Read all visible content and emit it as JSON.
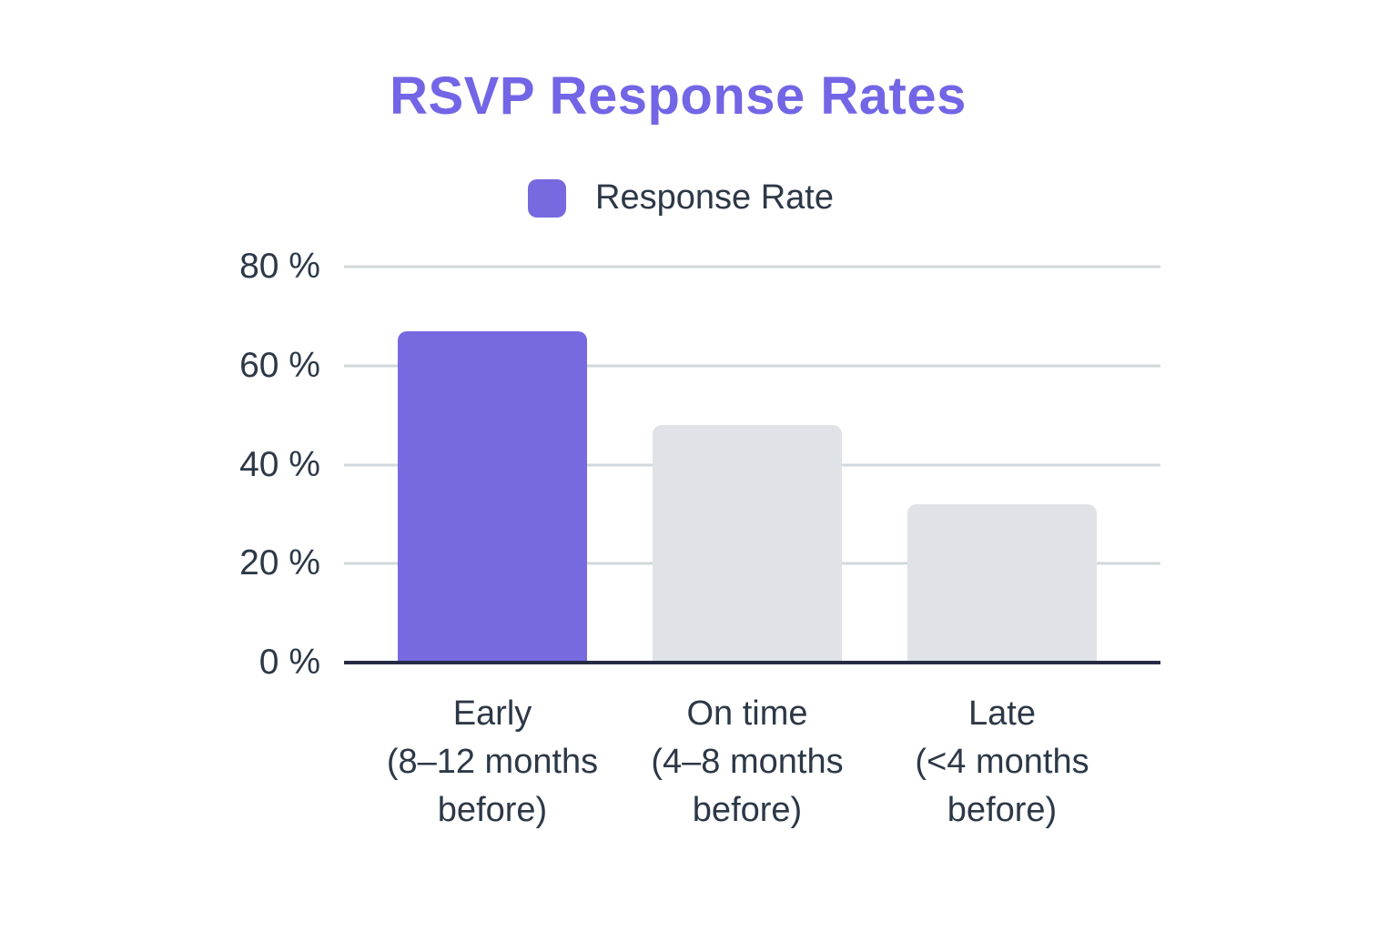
{
  "title": "RSVP Response Rates",
  "legend": {
    "label": "Response Rate",
    "swatch_color": "#7769df"
  },
  "colors": {
    "accent": "#7769df",
    "muted_bar": "#dfe2e6",
    "gridline": "#d1d8db",
    "axis_line": "#262b44",
    "text": "#2d3847",
    "title": "#7265e6",
    "background": "#ffffff"
  },
  "chart_data": {
    "type": "bar",
    "title": "RSVP Response Rates",
    "categories": [
      "Early",
      "On time",
      "Late"
    ],
    "category_sublabels": [
      [
        "(8–12 months",
        "before)"
      ],
      [
        "(4–8 months",
        "before)"
      ],
      [
        "(<4 months",
        "before)"
      ]
    ],
    "series": [
      {
        "name": "Response Rate",
        "values": [
          67,
          48,
          32
        ]
      }
    ],
    "bar_colors": [
      "#7769df",
      "#dfe2e6",
      "#dfe2e6"
    ],
    "xlabel": "",
    "ylabel": "",
    "ylim": [
      0,
      80
    ],
    "yticks": [
      "80 %",
      "60 %",
      "40 %",
      "20 %",
      "0 %"
    ],
    "ytick_values": [
      80,
      60,
      40,
      20,
      0
    ],
    "grid": true,
    "legend_position": "top"
  }
}
